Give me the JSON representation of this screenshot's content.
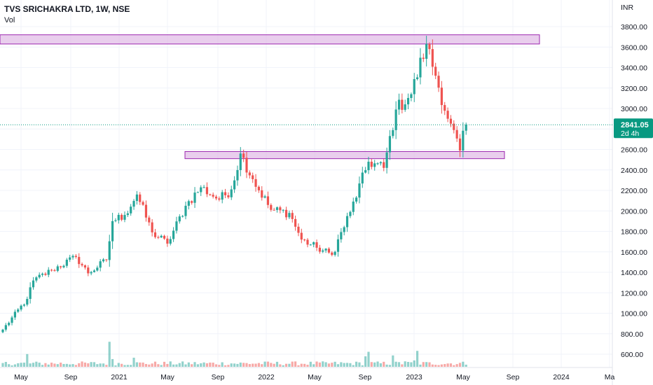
{
  "header": {
    "title": "TVS SRICHAKRA LTD, 1W, NSE",
    "volume_label": "Vol"
  },
  "price_axis": {
    "currency": "INR",
    "ticks": [
      "3800.00",
      "3600.00",
      "3400.00",
      "3200.00",
      "3000.00",
      "2800.00",
      "2600.00",
      "2400.00",
      "2200.00",
      "2000.00",
      "1800.00",
      "1600.00",
      "1400.00",
      "1200.00",
      "1000.00",
      "800.00",
      "600.00"
    ]
  },
  "last_price": {
    "value": "2841.05",
    "countdown": "2d 4h"
  },
  "colors": {
    "up": "#26a69a",
    "down": "#ef5350",
    "zone_fill": "#e1bee7",
    "zone_stroke": "#9c27b0",
    "last_price_badge": "#089981",
    "grid": "#f0f3fa"
  },
  "chart_data": {
    "type": "candlestick",
    "timeframe": "1W",
    "y_unit": "INR",
    "ylim": [
      520,
      3900
    ],
    "x_axis_labels": [
      "May",
      "Sep",
      "2021",
      "May",
      "Sep",
      "2022",
      "May",
      "Sep",
      "2023",
      "May",
      "Sep",
      "2024",
      "Ma"
    ],
    "horizontal_zones": [
      {
        "price_low": 3630,
        "price_high": 3720
      },
      {
        "price_low": 2510,
        "price_high": 2580
      }
    ],
    "anchors": [
      {
        "week": 0,
        "price": 840
      },
      {
        "week": 8,
        "price": 1140
      },
      {
        "week": 10,
        "price": 1320
      },
      {
        "week": 16,
        "price": 1420
      },
      {
        "week": 24,
        "price": 1550
      },
      {
        "week": 28,
        "price": 1390
      },
      {
        "week": 34,
        "price": 1520
      },
      {
        "week": 36,
        "price": 1900
      },
      {
        "week": 40,
        "price": 1960
      },
      {
        "week": 44,
        "price": 2160
      },
      {
        "week": 49,
        "price": 1790
      },
      {
        "week": 54,
        "price": 1680
      },
      {
        "week": 60,
        "price": 2050
      },
      {
        "week": 65,
        "price": 2230
      },
      {
        "week": 71,
        "price": 2110
      },
      {
        "week": 75,
        "price": 2210
      },
      {
        "week": 78,
        "price": 2560
      },
      {
        "week": 82,
        "price": 2310
      },
      {
        "week": 88,
        "price": 2010
      },
      {
        "week": 94,
        "price": 1980
      },
      {
        "week": 98,
        "price": 1720
      },
      {
        "week": 103,
        "price": 1640
      },
      {
        "week": 108,
        "price": 1570
      },
      {
        "week": 114,
        "price": 1990
      },
      {
        "week": 120,
        "price": 2480
      },
      {
        "week": 125,
        "price": 2420
      },
      {
        "week": 129,
        "price": 2990
      },
      {
        "week": 134,
        "price": 3140
      },
      {
        "week": 139,
        "price": 3630
      },
      {
        "week": 142,
        "price": 3320
      },
      {
        "week": 146,
        "price": 2900
      },
      {
        "week": 150,
        "price": 2590
      },
      {
        "week": 152,
        "price": 2841
      }
    ]
  }
}
